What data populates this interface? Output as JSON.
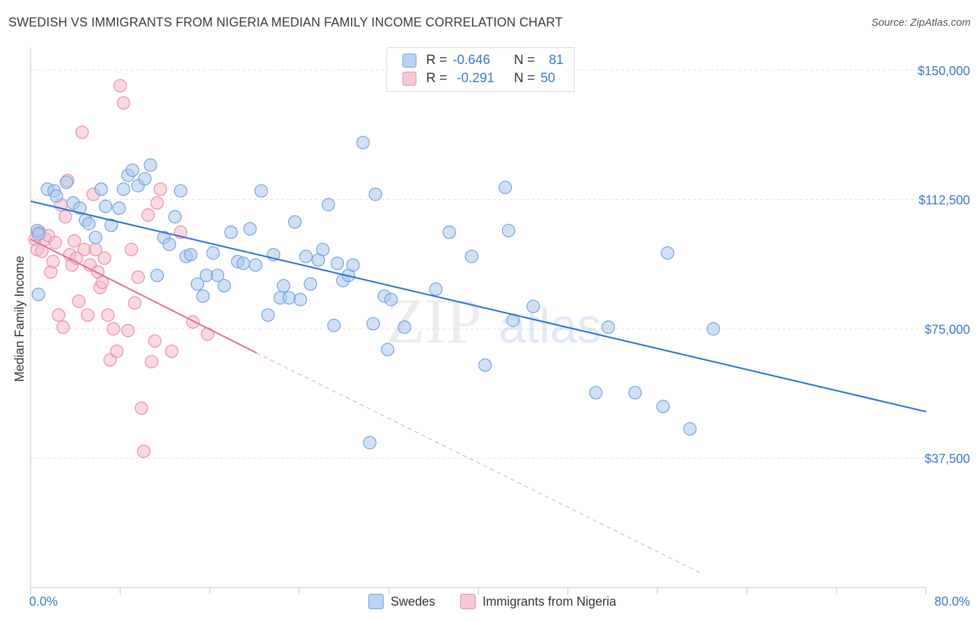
{
  "title": "SWEDISH VS IMMIGRANTS FROM NIGERIA MEDIAN FAMILY INCOME CORRELATION CHART",
  "source": "Source: ZipAtlas.com",
  "watermark": {
    "zip": "ZIP",
    "atlas": "atlas"
  },
  "legend": {
    "rows": [
      {
        "r_label": "R =",
        "r_value": "-0.646",
        "n_label": "N =",
        "n_value": "81"
      },
      {
        "r_label": "R =",
        "r_value": "-0.291",
        "n_label": "N =",
        "n_value": "50"
      }
    ],
    "bottom": [
      "Swedes",
      "Immigrants from Nigeria"
    ]
  },
  "colors": {
    "swedes_fill": "#a9c8ef",
    "swedes_stroke": "#6fa0dd",
    "swedes_line": "#2e74d0",
    "nigeria_fill": "#f6b9cc",
    "nigeria_stroke": "#ec8aa9",
    "nigeria_line": "#e2719a",
    "axis_label": "#3a78cc",
    "grid": "#e0e0e0"
  },
  "chart_data": {
    "type": "scatter",
    "title": "SWEDISH VS IMMIGRANTS FROM NIGERIA MEDIAN FAMILY INCOME CORRELATION CHART",
    "xlabel": "",
    "ylabel": "Median Family Income",
    "xlim": [
      0,
      80
    ],
    "ylim": [
      0,
      155000
    ],
    "x_tick_labels": [
      "0.0%",
      "80.0%"
    ],
    "y_ticks": [
      37500,
      75000,
      112500,
      150000
    ],
    "y_tick_labels": [
      "$37,500",
      "$75,000",
      "$112,500",
      "$150,000"
    ],
    "grid": true,
    "legend_position": "top-center",
    "series": [
      {
        "name": "Swedes",
        "points": [
          [
            0.6,
            103500
          ],
          [
            0.7,
            85000
          ],
          [
            1.5,
            115500
          ],
          [
            2.1,
            115000
          ],
          [
            2.3,
            113500
          ],
          [
            3.2,
            117500
          ],
          [
            3.8,
            111500
          ],
          [
            4.4,
            110000
          ],
          [
            4.9,
            106500
          ],
          [
            5.2,
            105500
          ],
          [
            5.8,
            101500
          ],
          [
            6.3,
            115500
          ],
          [
            6.7,
            110500
          ],
          [
            7.2,
            105000
          ],
          [
            7.9,
            110000
          ],
          [
            8.3,
            115500
          ],
          [
            8.7,
            119500
          ],
          [
            9.1,
            121000
          ],
          [
            9.6,
            116500
          ],
          [
            10.2,
            118500
          ],
          [
            10.7,
            122500
          ],
          [
            11.3,
            90500
          ],
          [
            11.9,
            101500
          ],
          [
            12.4,
            99500
          ],
          [
            12.9,
            107500
          ],
          [
            13.4,
            115000
          ],
          [
            13.9,
            96000
          ],
          [
            14.3,
            96500
          ],
          [
            14.9,
            88000
          ],
          [
            15.4,
            84500
          ],
          [
            15.7,
            90500
          ],
          [
            16.3,
            97000
          ],
          [
            16.7,
            90500
          ],
          [
            17.3,
            87500
          ],
          [
            17.9,
            103000
          ],
          [
            18.5,
            94500
          ],
          [
            19.0,
            94000
          ],
          [
            19.6,
            104000
          ],
          [
            20.1,
            93500
          ],
          [
            20.6,
            115000
          ],
          [
            21.2,
            79000
          ],
          [
            21.7,
            96500
          ],
          [
            22.3,
            84000
          ],
          [
            22.6,
            87500
          ],
          [
            23.1,
            84000
          ],
          [
            23.6,
            106000
          ],
          [
            24.1,
            83500
          ],
          [
            24.6,
            96000
          ],
          [
            25.0,
            88000
          ],
          [
            25.7,
            95000
          ],
          [
            26.1,
            98000
          ],
          [
            26.6,
            111000
          ],
          [
            27.1,
            76000
          ],
          [
            27.4,
            94000
          ],
          [
            27.9,
            89000
          ],
          [
            28.4,
            90500
          ],
          [
            28.8,
            93500
          ],
          [
            29.7,
            129000
          ],
          [
            30.3,
            42000
          ],
          [
            30.6,
            76500
          ],
          [
            30.8,
            114000
          ],
          [
            31.6,
            84500
          ],
          [
            31.9,
            69000
          ],
          [
            32.2,
            83500
          ],
          [
            33.4,
            75500
          ],
          [
            36.2,
            86500
          ],
          [
            37.4,
            103000
          ],
          [
            39.4,
            96000
          ],
          [
            40.6,
            64500
          ],
          [
            42.4,
            116000
          ],
          [
            42.7,
            103500
          ],
          [
            43.1,
            77500
          ],
          [
            44.9,
            81500
          ],
          [
            50.5,
            56500
          ],
          [
            51.6,
            75500
          ],
          [
            54.0,
            56500
          ],
          [
            56.5,
            52500
          ],
          [
            56.9,
            97000
          ],
          [
            58.9,
            46000
          ],
          [
            61.0,
            75000
          ],
          [
            0.7,
            102500
          ]
        ],
        "trend": {
          "x0": 0,
          "y0": 112000,
          "x1": 80,
          "y1": 51000
        }
      },
      {
        "name": "Immigrants from Nigeria",
        "points": [
          [
            0.4,
            101000
          ],
          [
            0.6,
            98000
          ],
          [
            0.8,
            103000
          ],
          [
            1.0,
            97500
          ],
          [
            1.3,
            101000
          ],
          [
            1.6,
            102000
          ],
          [
            1.8,
            91500
          ],
          [
            2.0,
            94500
          ],
          [
            2.2,
            100000
          ],
          [
            2.5,
            79000
          ],
          [
            2.7,
            111000
          ],
          [
            2.9,
            75500
          ],
          [
            3.1,
            107500
          ],
          [
            3.3,
            118000
          ],
          [
            3.5,
            96500
          ],
          [
            3.7,
            93500
          ],
          [
            3.9,
            100500
          ],
          [
            4.1,
            95500
          ],
          [
            4.3,
            83000
          ],
          [
            4.6,
            132000
          ],
          [
            4.8,
            98000
          ],
          [
            5.1,
            79000
          ],
          [
            5.3,
            93500
          ],
          [
            5.6,
            114000
          ],
          [
            5.8,
            98000
          ],
          [
            6.0,
            91500
          ],
          [
            6.2,
            87000
          ],
          [
            6.4,
            88500
          ],
          [
            6.6,
            95500
          ],
          [
            6.9,
            79000
          ],
          [
            7.1,
            66000
          ],
          [
            7.4,
            75000
          ],
          [
            7.7,
            68500
          ],
          [
            8.0,
            145500
          ],
          [
            8.3,
            140500
          ],
          [
            8.7,
            74500
          ],
          [
            9.0,
            98000
          ],
          [
            9.3,
            82500
          ],
          [
            9.6,
            90000
          ],
          [
            9.9,
            52000
          ],
          [
            10.1,
            39500
          ],
          [
            10.5,
            108000
          ],
          [
            10.8,
            65500
          ],
          [
            11.1,
            71500
          ],
          [
            11.3,
            111500
          ],
          [
            11.6,
            115500
          ],
          [
            12.6,
            68500
          ],
          [
            13.4,
            103000
          ],
          [
            14.5,
            77000
          ],
          [
            15.8,
            73500
          ]
        ],
        "trend": {
          "x0": 0,
          "y0": 101000,
          "x1": 20.2,
          "y1": 68000
        },
        "trend_extension": {
          "x0": 20.2,
          "y0": 68000,
          "x1": 60.0,
          "y1": 4000
        }
      }
    ]
  }
}
